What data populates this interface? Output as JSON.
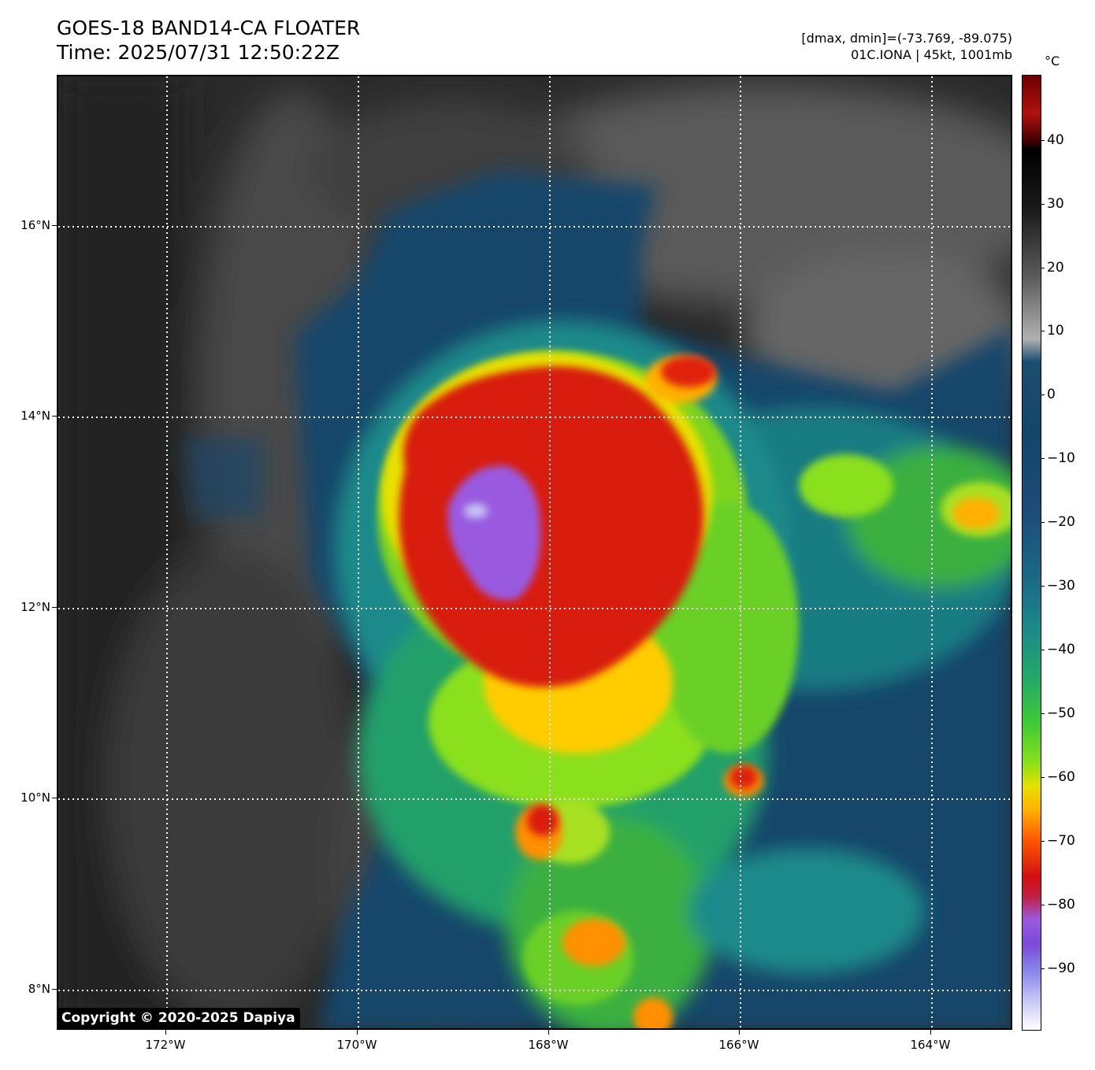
{
  "header": {
    "title_line1": "GOES-18 BAND14-CA FLOATER",
    "title_line2": "Time: 2025/07/31 12:50:22Z",
    "range_text": "[dmax, dmin]=(-73.769, -89.075)",
    "storm_text": "01C.IONA | 45kt, 1001mb"
  },
  "map": {
    "lat_ticks": [
      "16°N",
      "14°N",
      "12°N",
      "10°N",
      "8°N"
    ],
    "lon_ticks": [
      "172°W",
      "170°W",
      "168°W",
      "166°W",
      "164°W"
    ],
    "copyright": "Copyright © 2020-2025 Dapiya"
  },
  "colorbar": {
    "unit": "°C",
    "ticks": [
      "40",
      "30",
      "20",
      "10",
      "0",
      "−10",
      "−20",
      "−30",
      "−40",
      "−50",
      "−60",
      "−70",
      "−80",
      "−90"
    ]
  }
}
